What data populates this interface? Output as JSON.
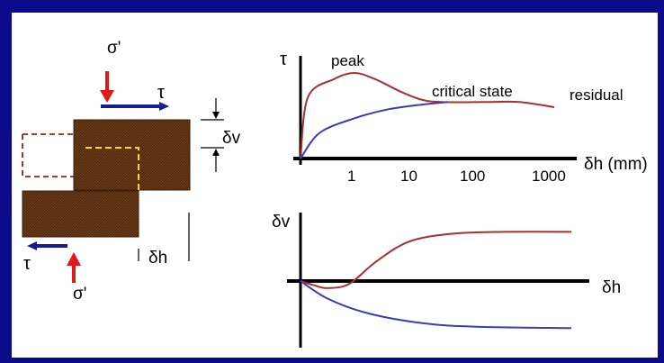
{
  "colors": {
    "background": "#0a0a8a",
    "panel": "#ffffff",
    "block_fill": "#6b3a17",
    "sigma_arrow": "#e01818",
    "tau_arrow": "#1a1a99",
    "peak_curve": "#a83030",
    "dense_curve": "#3c3cb4",
    "dashed_outline_red": "#a01c1c",
    "dashed_outline_yellow": "#f0e020"
  },
  "shear_box": {
    "sigma_top": "σ'",
    "tau_top": "τ",
    "tau_bottom": "τ",
    "sigma_bottom": "σ'",
    "dv": "δv",
    "dh": "δh"
  },
  "chart_data": [
    {
      "type": "line",
      "ylabel": "τ",
      "xlabel": "δh (mm)",
      "x_scale": "log",
      "x_ticks": [
        "1",
        "10",
        "100",
        "1000"
      ],
      "annotations": [
        "peak",
        "critical state",
        "residual"
      ],
      "series": [
        {
          "color": "#a83030",
          "points": [
            [
              0,
              0
            ],
            [
              0.2,
              0.72
            ],
            [
              0.5,
              0.93
            ],
            [
              1,
              1.0
            ],
            [
              2,
              0.93
            ],
            [
              5,
              0.78
            ],
            [
              10,
              0.69
            ],
            [
              20,
              0.66
            ],
            [
              100,
              0.66
            ],
            [
              300,
              0.66
            ],
            [
              1000,
              0.6
            ]
          ]
        },
        {
          "color": "#3c3cb4",
          "points": [
            [
              0,
              0
            ],
            [
              0.3,
              0.3
            ],
            [
              1,
              0.47
            ],
            [
              3,
              0.57
            ],
            [
              10,
              0.63
            ],
            [
              25,
              0.66
            ]
          ]
        }
      ]
    },
    {
      "type": "line",
      "ylabel": "δv",
      "xlabel": "δh",
      "series": [
        {
          "color": "#a83030",
          "points": [
            [
              0,
              0
            ],
            [
              0.05,
              -0.06
            ],
            [
              0.1,
              -0.1
            ],
            [
              0.18,
              -0.04
            ],
            [
              0.28,
              0.28
            ],
            [
              0.4,
              0.56
            ],
            [
              0.55,
              0.67
            ],
            [
              0.75,
              0.7
            ],
            [
              1.0,
              0.7
            ]
          ]
        },
        {
          "color": "#3c3cb4",
          "points": [
            [
              0,
              0
            ],
            [
              0.1,
              -0.25
            ],
            [
              0.25,
              -0.46
            ],
            [
              0.45,
              -0.6
            ],
            [
              0.65,
              -0.65
            ],
            [
              1.0,
              -0.67
            ]
          ]
        }
      ]
    }
  ]
}
